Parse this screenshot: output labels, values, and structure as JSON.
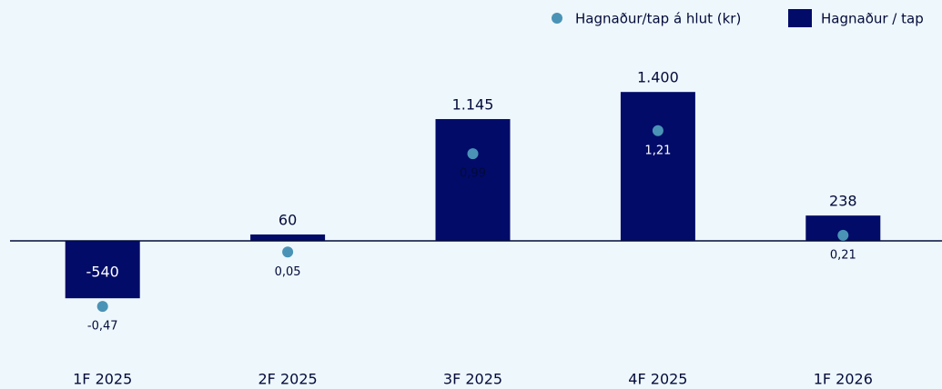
{
  "chart_data": {
    "type": "bar",
    "categories": [
      "1F 2025",
      "2F 2025",
      "3F 2025",
      "4F 2025",
      "1F 2026"
    ],
    "series": [
      {
        "name": "Hagnaður / tap",
        "type": "bar",
        "color": "#020b68",
        "values": [
          -540,
          60,
          1145,
          1400,
          238
        ],
        "value_labels": [
          "-540",
          "60",
          "1.145",
          "1.400",
          "238"
        ]
      },
      {
        "name": "Hagnaður/tap á hlut (kr)",
        "type": "scatter",
        "axis": "y2",
        "color": "#4a93b6",
        "values": [
          -0.47,
          0.05,
          0.99,
          1.21,
          0.21
        ],
        "value_labels": [
          "-0,47",
          "0,05",
          "0,99",
          "1,21",
          "0,21"
        ]
      }
    ],
    "ylim": [
      -1000,
      2000
    ],
    "y2lim": [
      -0.86,
      2.19
    ],
    "legend": "top-right"
  }
}
